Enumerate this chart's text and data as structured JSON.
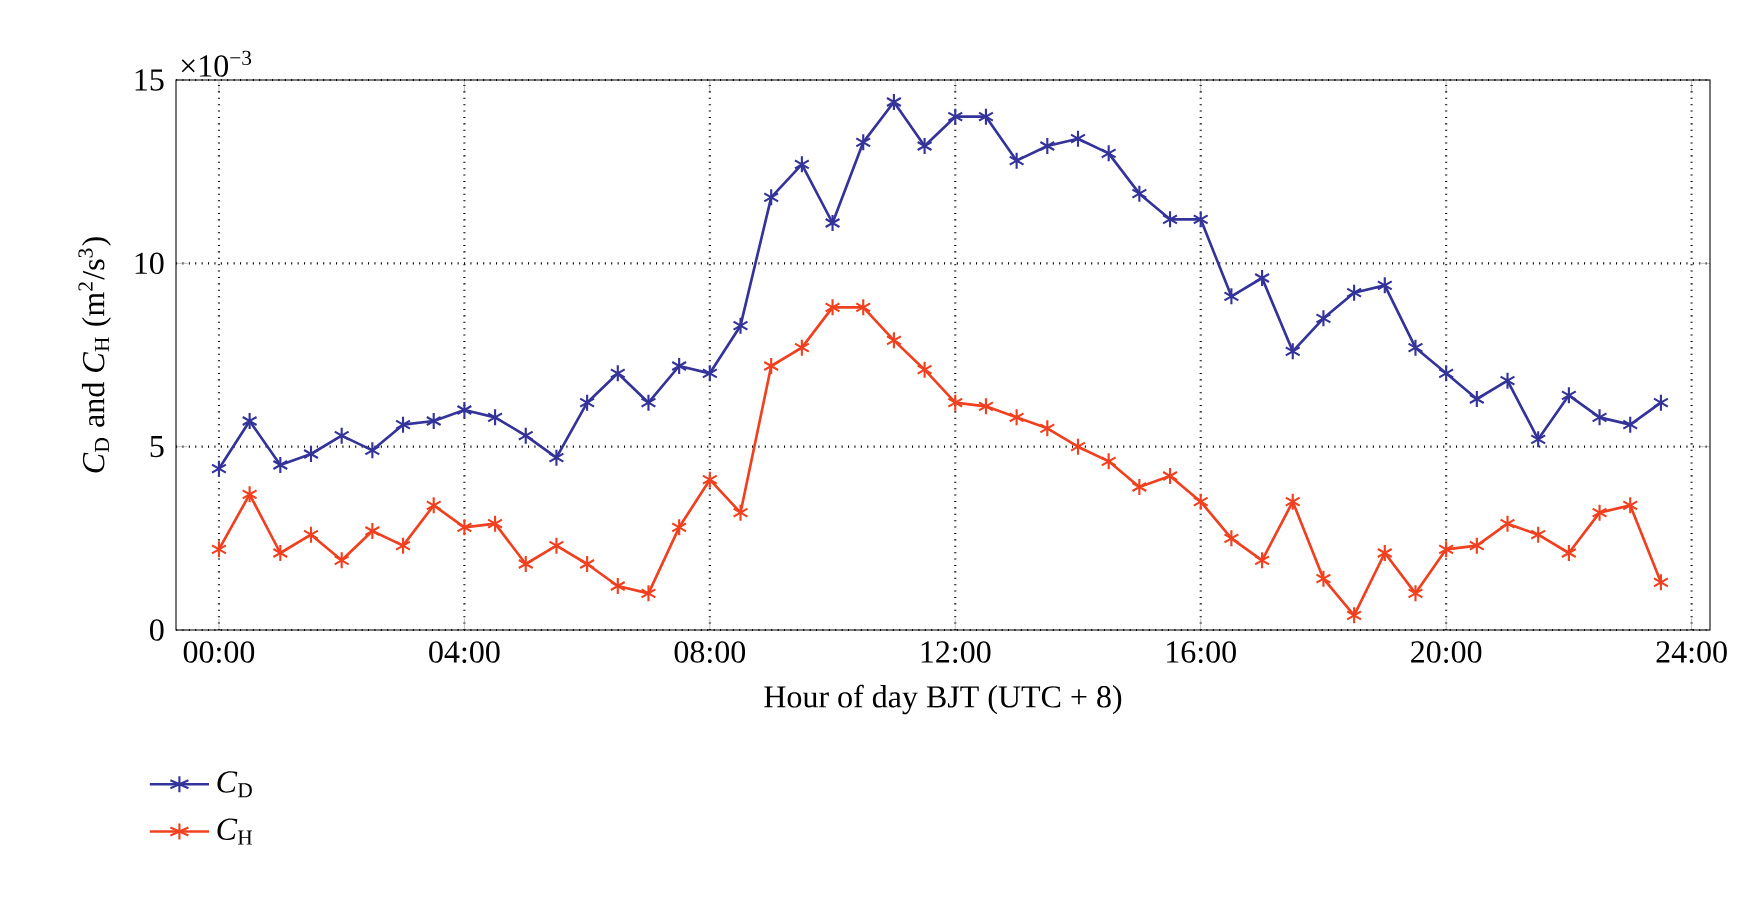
{
  "chart_data": {
    "type": "line",
    "xlabel": "Hour of day BJT (UTC + 8)",
    "ylabel": "*C*$_{D}$ and *C*$_{H}$ (m$^{2}$/s$^{3}$)",
    "annotations": [
      "×10$^{−3}$"
    ],
    "x": [
      0,
      0.5,
      1,
      1.5,
      2,
      2.5,
      3,
      3.5,
      4,
      4.5,
      5,
      5.5,
      6,
      6.5,
      7,
      7.5,
      8,
      8.5,
      9,
      9.5,
      10,
      10.5,
      11,
      11.5,
      12,
      12.5,
      13,
      13.5,
      14,
      14.5,
      15,
      15.5,
      16,
      16.5,
      17,
      17.5,
      18,
      18.5,
      19,
      19.5,
      20,
      20.5,
      21,
      21.5,
      22,
      22.5,
      23,
      23.5
    ],
    "series": [
      {
        "name": "*C*$_{D}$",
        "color": "#33339a",
        "values": [
          4.4,
          5.7,
          4.5,
          4.8,
          5.3,
          4.9,
          5.6,
          5.7,
          6.0,
          5.8,
          5.3,
          4.7,
          6.2,
          7.0,
          6.2,
          7.2,
          7.0,
          8.3,
          11.8,
          12.7,
          11.1,
          13.3,
          14.4,
          13.2,
          14.0,
          14.0,
          12.8,
          13.2,
          13.4,
          13.0,
          11.9,
          11.2,
          11.2,
          9.1,
          9.6,
          7.6,
          8.5,
          9.2,
          9.4,
          7.7,
          7.0,
          6.3,
          6.8,
          5.2,
          6.4,
          5.8,
          5.6,
          6.2
        ]
      },
      {
        "name": "*C*$_{H}$",
        "color": "#f0401f",
        "values": [
          2.2,
          3.7,
          2.1,
          2.6,
          1.9,
          2.7,
          2.3,
          3.4,
          2.8,
          2.9,
          1.8,
          2.3,
          1.8,
          1.2,
          1.0,
          2.8,
          4.1,
          3.2,
          7.2,
          7.7,
          8.8,
          8.8,
          7.9,
          7.1,
          6.2,
          6.1,
          5.8,
          5.5,
          5.0,
          4.6,
          3.9,
          4.2,
          3.5,
          2.5,
          1.9,
          3.5,
          1.4,
          0.4,
          2.1,
          1.0,
          2.2,
          2.3,
          2.9,
          2.6,
          2.1,
          3.2,
          3.4,
          1.3
        ]
      }
    ],
    "xlim": [
      -0.7,
      24.3
    ],
    "ylim": [
      0,
      15
    ],
    "xticks": [
      {
        "value": 0,
        "label": "00:00"
      },
      {
        "value": 4,
        "label": "04:00"
      },
      {
        "value": 8,
        "label": "08:00"
      },
      {
        "value": 12,
        "label": "12:00"
      },
      {
        "value": 16,
        "label": "16:00"
      },
      {
        "value": 20,
        "label": "20:00"
      },
      {
        "value": 24,
        "label": "24:00"
      }
    ],
    "yticks": [
      0,
      5,
      10,
      15
    ],
    "grid": true,
    "legend": "bottom left",
    "marker": "cross",
    "line_style": "solid"
  }
}
